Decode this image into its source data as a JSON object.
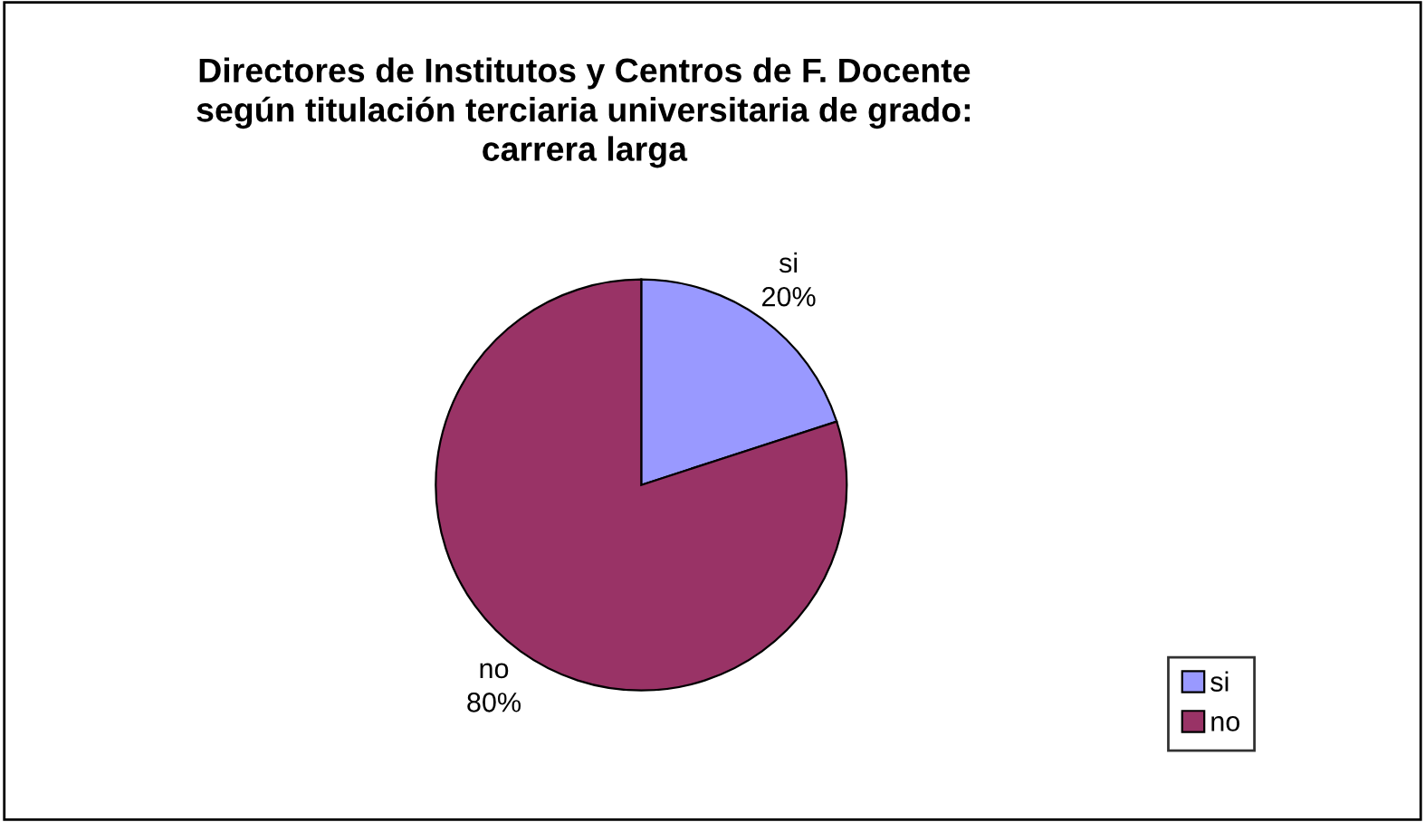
{
  "chart_data": {
    "type": "pie",
    "title": "Directores de Institutos y Centros de F. Docente\nsegún titulación terciaria universitaria de grado:\ncarrera larga",
    "categories": [
      "si",
      "no"
    ],
    "values": [
      20,
      80
    ],
    "value_labels": [
      "20%",
      "80%"
    ],
    "colors": [
      "#9999ff",
      "#993366"
    ],
    "legend": "bottom right"
  }
}
